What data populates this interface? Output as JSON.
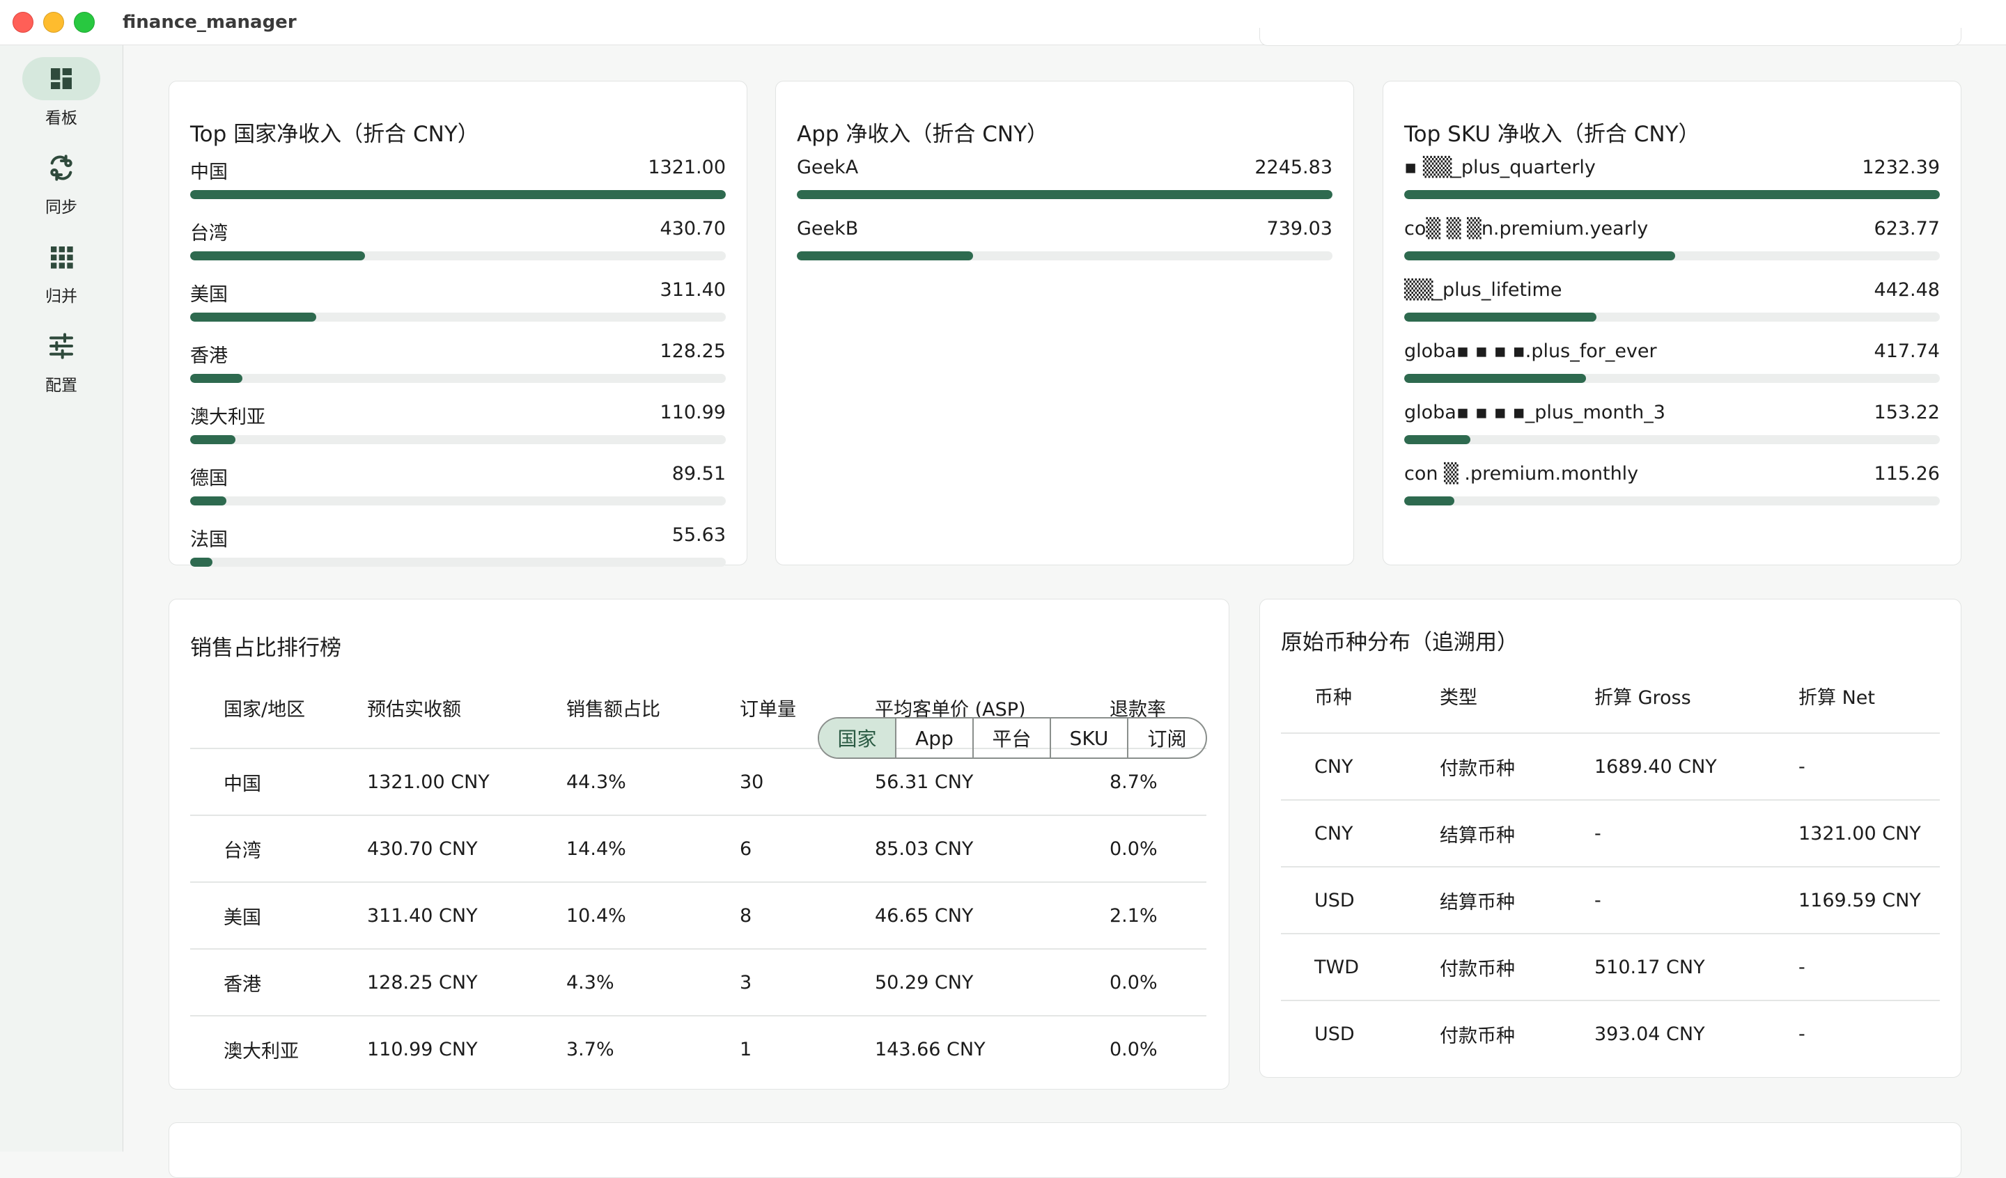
{
  "window": {
    "title": "finance_manager"
  },
  "sidebar": {
    "items": [
      {
        "label": "看板",
        "icon": "dashboard-icon",
        "active": true
      },
      {
        "label": "同步",
        "icon": "sync-icon",
        "active": false
      },
      {
        "label": "归并",
        "icon": "grid-icon",
        "active": false
      },
      {
        "label": "配置",
        "icon": "sliders-icon",
        "active": false
      }
    ]
  },
  "accent_color": "#2e6a4f",
  "country_card": {
    "title": "Top 国家净收入（折合 CNY）",
    "items": [
      {
        "label": "中国",
        "value": "1321.00",
        "fraction": 1.0
      },
      {
        "label": "台湾",
        "value": "430.70",
        "fraction": 0.326
      },
      {
        "label": "美国",
        "value": "311.40",
        "fraction": 0.236
      },
      {
        "label": "香港",
        "value": "128.25",
        "fraction": 0.097
      },
      {
        "label": "澳大利亚",
        "value": "110.99",
        "fraction": 0.084
      },
      {
        "label": "德国",
        "value": "89.51",
        "fraction": 0.068
      },
      {
        "label": "法国",
        "value": "55.63",
        "fraction": 0.042
      }
    ]
  },
  "app_card": {
    "title": "App 净收入（折合 CNY）",
    "items": [
      {
        "label": "GeekA",
        "value": "2245.83",
        "fraction": 1.0
      },
      {
        "label": "GeekB",
        "value": "739.03",
        "fraction": 0.329
      }
    ]
  },
  "sku_card": {
    "title": "Top SKU 净收入（折合 CNY）",
    "items": [
      {
        "label": "▪ ▒▒_plus_quarterly",
        "value": "1232.39",
        "fraction": 1.0
      },
      {
        "label": "co▒ ▒ ▒n.premium.yearly",
        "value": "623.77",
        "fraction": 0.506
      },
      {
        "label": "▒▒_plus_lifetime",
        "value": "442.48",
        "fraction": 0.359
      },
      {
        "label": "globa▪ ▪ ▪ ▪.plus_for_ever",
        "value": "417.74",
        "fraction": 0.339
      },
      {
        "label": "globa▪ ▪ ▪ ▪_plus_month_3",
        "value": "153.22",
        "fraction": 0.124
      },
      {
        "label": "con ▒ .premium.monthly",
        "value": "115.26",
        "fraction": 0.094
      }
    ]
  },
  "ranking": {
    "title": "销售占比排行榜",
    "tabs": [
      {
        "label": "国家",
        "active": true
      },
      {
        "label": "App",
        "active": false
      },
      {
        "label": "平台",
        "active": false
      },
      {
        "label": "SKU",
        "active": false
      },
      {
        "label": "订阅",
        "active": false
      }
    ],
    "columns": [
      "国家/地区",
      "预估实收额",
      "销售额占比",
      "订单量",
      "平均客单价 (ASP)",
      "退款率"
    ],
    "rows": [
      [
        "中国",
        "1321.00 CNY",
        "44.3%",
        "30",
        "56.31 CNY",
        "8.7%"
      ],
      [
        "台湾",
        "430.70 CNY",
        "14.4%",
        "6",
        "85.03 CNY",
        "0.0%"
      ],
      [
        "美国",
        "311.40 CNY",
        "10.4%",
        "8",
        "46.65 CNY",
        "2.1%"
      ],
      [
        "香港",
        "128.25 CNY",
        "4.3%",
        "3",
        "50.29 CNY",
        "0.0%"
      ],
      [
        "澳大利亚",
        "110.99 CNY",
        "3.7%",
        "1",
        "143.66 CNY",
        "0.0%"
      ]
    ]
  },
  "currency": {
    "title": "原始币种分布（追溯用）",
    "columns": [
      "币种",
      "类型",
      "折算 Gross",
      "折算 Net"
    ],
    "rows": [
      [
        "CNY",
        "付款币种",
        "1689.40 CNY",
        "-"
      ],
      [
        "CNY",
        "结算币种",
        "-",
        "1321.00 CNY"
      ],
      [
        "USD",
        "结算币种",
        "-",
        "1169.59 CNY"
      ],
      [
        "TWD",
        "付款币种",
        "510.17 CNY",
        "-"
      ],
      [
        "USD",
        "付款币种",
        "393.04 CNY",
        "-"
      ]
    ]
  }
}
